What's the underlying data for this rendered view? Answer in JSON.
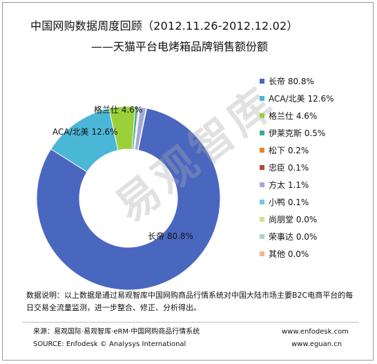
{
  "title": {
    "line1": "中国网购数据周度回顾（2012.11.26-2012.12.02）",
    "line2": "——天猫平台电烤箱品牌销售额份额"
  },
  "chart_data": {
    "type": "pie",
    "donut": true,
    "slices": [
      {
        "label": "长帝",
        "value": 80.8,
        "color": "#4a67c0"
      },
      {
        "label": "ACA/北美",
        "value": 12.6,
        "color": "#4bb7d6"
      },
      {
        "label": "格兰仕",
        "value": 4.6,
        "color": "#9bd03a"
      },
      {
        "label": "伊莱克斯",
        "value": 0.5,
        "color": "#3aa99a"
      },
      {
        "label": "松下",
        "value": 0.2,
        "color": "#e8842a"
      },
      {
        "label": "忠臣",
        "value": 0.1,
        "color": "#b54a3a"
      },
      {
        "label": "方太",
        "value": 1.1,
        "color": "#a6a8d8"
      },
      {
        "label": "小鸭",
        "value": 0.1,
        "color": "#77c6e6"
      },
      {
        "label": "尚朋堂",
        "value": 0.0,
        "color": "#cde58a"
      },
      {
        "label": "荣事达",
        "value": 0.0,
        "color": "#a8d8cc"
      },
      {
        "label": "其他",
        "value": 0.0,
        "color": "#f1b58a"
      }
    ],
    "slice_labels": [
      {
        "text": "长帝 80.8%"
      },
      {
        "text": "ACA/北美 12.6%"
      },
      {
        "text": "格兰仕 4.6%"
      }
    ],
    "legend_placement": "right",
    "legend_entries": [
      "长帝 80.8%",
      "ACA/北美 12.6%",
      "格兰仕 4.6%",
      "伊莱克斯 0.5%",
      "松下 0.2%",
      "忠臣 0.1%",
      "方太 1.1%",
      "小鸭 0.1%",
      "尚朋堂 0.0%",
      "荣事达 0.0%",
      "其他 0.0%"
    ]
  },
  "watermark": "易观智库",
  "note": "数据说明：以上数据是通过易观智库中国网购商品行情系统对中国大陆市场主要B2C电商平台的每日交易全流量监测，进一步整合、修正、分析得出。",
  "footer": {
    "source_cn": "来源：易观国际·易观智库·eRM·中国网购商品行情系统",
    "source_en": "SOURCE: Enfodesk © Analysys International",
    "url1": "www.enfodesk.com",
    "url2": "www.eguan.cn"
  }
}
